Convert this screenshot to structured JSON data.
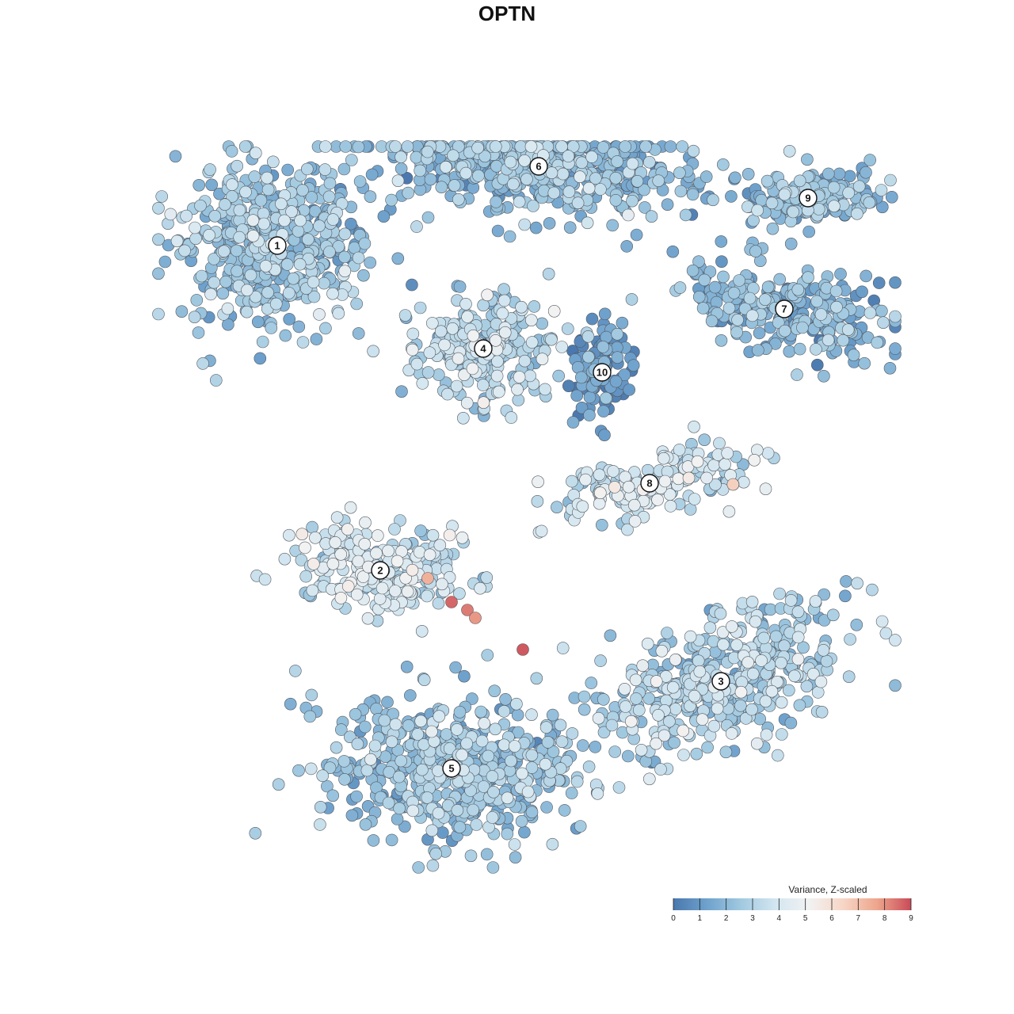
{
  "chart_data": {
    "type": "scatter",
    "title": "OPTN",
    "xlabel": "",
    "ylabel": "",
    "grid": false,
    "axes_visible": false,
    "legend": {
      "title": "Variance, Z-scaled",
      "placement": "bottom-right",
      "range": [
        0,
        9
      ],
      "ticks": [
        "0",
        "1",
        "2",
        "3",
        "4",
        "5",
        "6",
        "7",
        "8",
        "9"
      ],
      "colors": [
        "#4a78ae",
        "#6fa2cd",
        "#a1c9e0",
        "#d3e6f0",
        "#f2f2f2",
        "#f7d6c6",
        "#eea58d",
        "#c94b58"
      ]
    },
    "clusters": [
      {
        "label": "1",
        "x": -29,
        "y": 73,
        "level": 2.4,
        "n": 520
      },
      {
        "label": "6",
        "x": 4,
        "y": 83,
        "level": 2.1,
        "n": 560
      },
      {
        "label": "9",
        "x": 38,
        "y": 79,
        "level": 2.0,
        "n": 190
      },
      {
        "label": "7",
        "x": 35,
        "y": 65,
        "level": 1.9,
        "n": 260
      },
      {
        "label": "4",
        "x": -3,
        "y": 60,
        "level": 3.1,
        "n": 260
      },
      {
        "label": "10",
        "x": 12,
        "y": 57,
        "level": 0.9,
        "n": 110
      },
      {
        "label": "8",
        "x": 18,
        "y": 43,
        "level": 3.6,
        "n": 170
      },
      {
        "label": "2",
        "x": -16,
        "y": 32,
        "level": 3.7,
        "n": 230
      },
      {
        "label": "3",
        "x": 27,
        "y": 18,
        "level": 3.0,
        "n": 440
      },
      {
        "label": "5",
        "x": -7,
        "y": 7,
        "level": 2.4,
        "n": 520
      }
    ],
    "hotspots": [
      {
        "x": -7,
        "y": 28,
        "value": 8.6
      },
      {
        "x": -5,
        "y": 27,
        "value": 8.3
      },
      {
        "x": 2,
        "y": 22,
        "value": 8.8
      },
      {
        "x": -10,
        "y": 31,
        "value": 7.4
      },
      {
        "x": -4,
        "y": 26,
        "value": 7.9
      }
    ]
  }
}
